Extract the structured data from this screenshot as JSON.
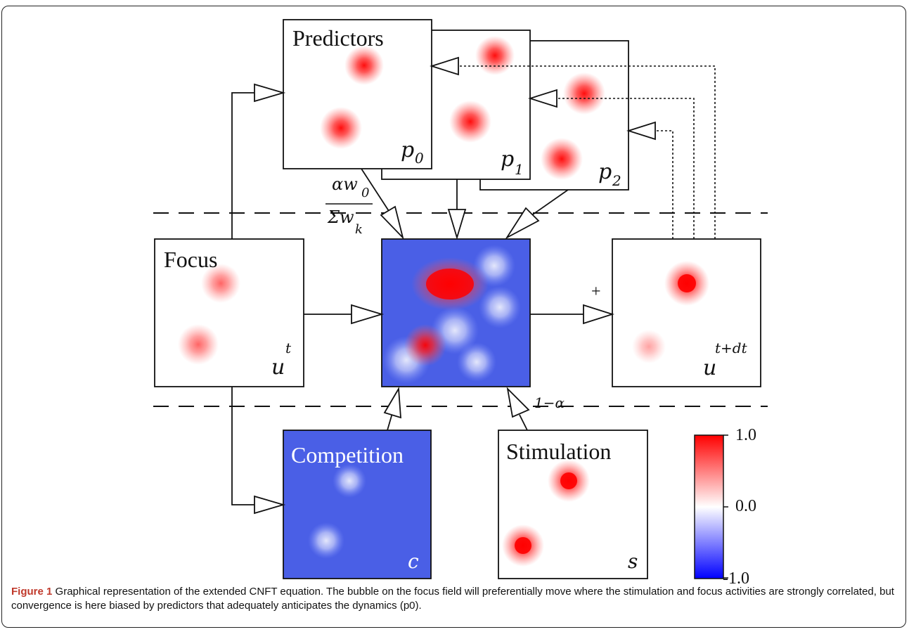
{
  "labels": {
    "predictors": "Predictors",
    "focus": "Focus",
    "competition": "Competition",
    "stimulation": "Stimulation"
  },
  "math": {
    "p0": "p",
    "p0_sub": "0",
    "p1": "p",
    "p1_sub": "1",
    "p2": "p",
    "p2_sub": "2",
    "u_t": "u",
    "u_t_sup": "t",
    "u_tdt": "u",
    "u_tdt_sup": "t+dt",
    "c": "c",
    "s": "s",
    "plus": "+",
    "one_minus_alpha": "1−α",
    "weight_num": "αw",
    "weight_num_sub": "0",
    "weight_den": "Σw",
    "weight_den_sub": "k"
  },
  "colorbar": {
    "max": "1.0",
    "mid": "0.0",
    "min": "-1.0",
    "color_max": "#ff0000",
    "color_mid": "#ffffff",
    "color_min": "#0000ff"
  },
  "colors": {
    "field_blue": "#4a5fe6",
    "bubble_red": "#ff0000",
    "bubble_white": "#ffffff"
  },
  "caption": {
    "label": "Figure 1",
    "text": " Graphical representation of the extended CNFT equation. The bubble on the focus field will preferentially move where the stimulation and focus activities are strongly correlated, but convergence is here biased by predictors that adequately anticipates the dynamics (p0)."
  }
}
